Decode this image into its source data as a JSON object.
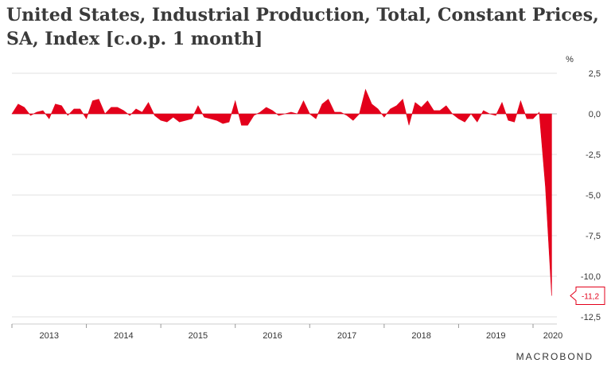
{
  "chart_data": {
    "type": "area",
    "title": "United States, Industrial Production, Total, Constant Prices, SA, Index [c.o.p. 1 month]",
    "unit": "%",
    "ylim": [
      -12.5,
      2.5
    ],
    "y_ticks": [
      2.5,
      0.0,
      -2.5,
      -5.0,
      -7.5,
      -10.0,
      -12.5
    ],
    "y_tick_labels": [
      "2,5",
      "0,0",
      "-2,5",
      "-5,0",
      "-7,5",
      "-10,0",
      "-12,5"
    ],
    "x_tick_labels": [
      "2013",
      "2014",
      "2015",
      "2016",
      "2017",
      "2018",
      "2019",
      "2020"
    ],
    "grid": true,
    "series_color": "#e3001b",
    "x_start": "2013-01",
    "x": [
      "2013-01",
      "2013-02",
      "2013-03",
      "2013-04",
      "2013-05",
      "2013-06",
      "2013-07",
      "2013-08",
      "2013-09",
      "2013-10",
      "2013-11",
      "2013-12",
      "2014-01",
      "2014-02",
      "2014-03",
      "2014-04",
      "2014-05",
      "2014-06",
      "2014-07",
      "2014-08",
      "2014-09",
      "2014-10",
      "2014-11",
      "2014-12",
      "2015-01",
      "2015-02",
      "2015-03",
      "2015-04",
      "2015-05",
      "2015-06",
      "2015-07",
      "2015-08",
      "2015-09",
      "2015-10",
      "2015-11",
      "2015-12",
      "2016-01",
      "2016-02",
      "2016-03",
      "2016-04",
      "2016-05",
      "2016-06",
      "2016-07",
      "2016-08",
      "2016-09",
      "2016-10",
      "2016-11",
      "2016-12",
      "2017-01",
      "2017-02",
      "2017-03",
      "2017-04",
      "2017-05",
      "2017-06",
      "2017-07",
      "2017-08",
      "2017-09",
      "2017-10",
      "2017-11",
      "2017-12",
      "2018-01",
      "2018-02",
      "2018-03",
      "2018-04",
      "2018-05",
      "2018-06",
      "2018-07",
      "2018-08",
      "2018-09",
      "2018-10",
      "2018-11",
      "2018-12",
      "2019-01",
      "2019-02",
      "2019-03",
      "2019-04",
      "2019-05",
      "2019-06",
      "2019-07",
      "2019-08",
      "2019-09",
      "2019-10",
      "2019-11",
      "2019-12",
      "2020-01",
      "2020-02",
      "2020-03",
      "2020-04"
    ],
    "values": [
      0.0,
      0.6,
      0.4,
      -0.1,
      0.1,
      0.2,
      -0.3,
      0.6,
      0.5,
      -0.1,
      0.3,
      0.3,
      -0.3,
      0.8,
      0.9,
      0.0,
      0.4,
      0.4,
      0.2,
      -0.1,
      0.3,
      0.1,
      0.7,
      -0.1,
      -0.4,
      -0.5,
      -0.2,
      -0.5,
      -0.4,
      -0.3,
      0.5,
      -0.2,
      -0.3,
      -0.4,
      -0.6,
      -0.5,
      0.8,
      -0.7,
      -0.7,
      -0.1,
      0.1,
      0.4,
      0.2,
      -0.1,
      0.0,
      0.1,
      0.0,
      0.8,
      0.0,
      -0.3,
      0.6,
      0.9,
      0.1,
      0.1,
      -0.1,
      -0.4,
      0.0,
      1.5,
      0.6,
      0.3,
      -0.2,
      0.3,
      0.5,
      0.9,
      -0.7,
      0.7,
      0.4,
      0.8,
      0.2,
      0.2,
      0.5,
      0.0,
      -0.3,
      -0.5,
      0.0,
      -0.5,
      0.2,
      0.0,
      -0.1,
      0.7,
      -0.4,
      -0.5,
      0.8,
      -0.3,
      -0.3,
      0.1,
      -4.5,
      -11.2
    ],
    "last_value_label": "-11,2"
  },
  "brand": "MACROBOND"
}
